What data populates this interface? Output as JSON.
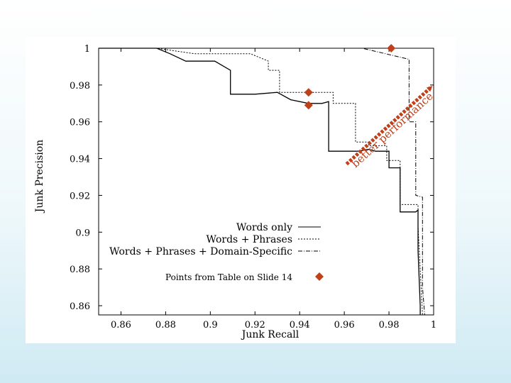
{
  "chart_data": {
    "type": "line",
    "xlabel": "Junk Recall",
    "ylabel": "Junk Precision",
    "xlim": [
      0.85,
      1.0
    ],
    "ylim": [
      0.855,
      1.0
    ],
    "x_ticks": [
      "0.86",
      "0.88",
      "0.9",
      "0.92",
      "0.94",
      "0.96",
      "0.98",
      "1"
    ],
    "y_ticks": [
      "0.86",
      "0.88",
      "0.9",
      "0.92",
      "0.94",
      "0.96",
      "0.98",
      "1"
    ],
    "grid": false,
    "legend_position": "lower-left",
    "series": [
      {
        "name": "Words only",
        "style": "solid",
        "points": [
          [
            0.85,
            1.0
          ],
          [
            0.876,
            1.0
          ],
          [
            0.882,
            0.997
          ],
          [
            0.889,
            0.993
          ],
          [
            0.902,
            0.993
          ],
          [
            0.909,
            0.988
          ],
          [
            0.909,
            0.975
          ],
          [
            0.92,
            0.975
          ],
          [
            0.93,
            0.976
          ],
          [
            0.936,
            0.972
          ],
          [
            0.944,
            0.97
          ],
          [
            0.95,
            0.97
          ],
          [
            0.953,
            0.971
          ],
          [
            0.953,
            0.944
          ],
          [
            0.966,
            0.944
          ],
          [
            0.971,
            0.945
          ],
          [
            0.974,
            0.944
          ],
          [
            0.98,
            0.944
          ],
          [
            0.98,
            0.935
          ],
          [
            0.985,
            0.935
          ],
          [
            0.985,
            0.911
          ],
          [
            0.988,
            0.911
          ],
          [
            0.992,
            0.911
          ],
          [
            0.993,
            0.912
          ],
          [
            0.993,
            0.89
          ],
          [
            0.994,
            0.86
          ],
          [
            0.994,
            0.855
          ]
        ]
      },
      {
        "name": "Words + Phrases",
        "style": "dotted",
        "points": [
          [
            0.85,
            1.0
          ],
          [
            0.876,
            1.0
          ],
          [
            0.893,
            0.997
          ],
          [
            0.918,
            0.997
          ],
          [
            0.926,
            0.993
          ],
          [
            0.926,
            0.988
          ],
          [
            0.931,
            0.988
          ],
          [
            0.931,
            0.976
          ],
          [
            0.955,
            0.976
          ],
          [
            0.955,
            0.97
          ],
          [
            0.965,
            0.97
          ],
          [
            0.965,
            0.949
          ],
          [
            0.971,
            0.949
          ],
          [
            0.971,
            0.947
          ],
          [
            0.979,
            0.947
          ],
          [
            0.979,
            0.939
          ],
          [
            0.985,
            0.939
          ],
          [
            0.985,
            0.915
          ],
          [
            0.993,
            0.915
          ],
          [
            0.993,
            0.903
          ],
          [
            0.994,
            0.88
          ],
          [
            0.995,
            0.855
          ]
        ]
      },
      {
        "name": "Words + Phrases + Domain-Specific",
        "style": "dash-dot",
        "points": [
          [
            0.85,
            1.0
          ],
          [
            0.891,
            1.0
          ],
          [
            0.968,
            1.0
          ],
          [
            0.989,
            0.994
          ],
          [
            0.989,
            0.99
          ],
          [
            0.989,
            0.96
          ],
          [
            0.992,
            0.96
          ],
          [
            0.992,
            0.92
          ],
          [
            0.995,
            0.919
          ],
          [
            0.995,
            0.87
          ],
          [
            0.996,
            0.855
          ]
        ]
      }
    ],
    "highlight_points": {
      "name": "Points from Table on Slide 14",
      "color": "#c0401a",
      "points": [
        [
          0.944,
          0.976
        ],
        [
          0.944,
          0.969
        ],
        [
          0.981,
          1.0
        ]
      ]
    },
    "annotation": {
      "text": "better performance",
      "color": "#c0401a",
      "from": [
        0.961,
        0.937
      ],
      "to": [
        0.999,
        0.979
      ]
    }
  }
}
